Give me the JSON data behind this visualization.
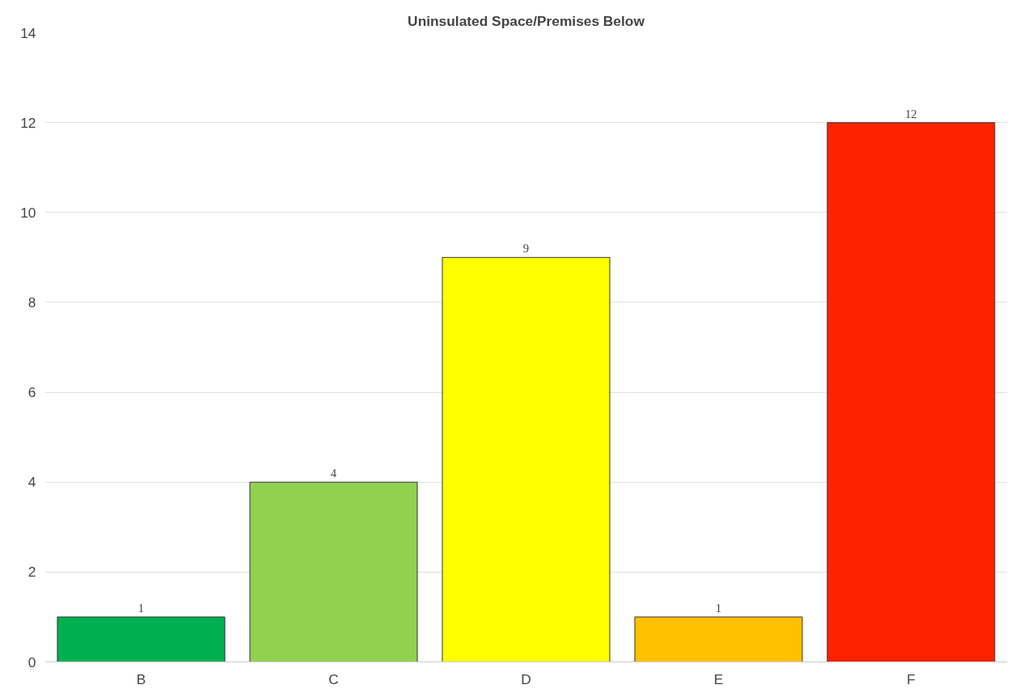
{
  "chart_data": {
    "type": "bar",
    "title": "Uninsulated Space/Premises Below",
    "categories": [
      "B",
      "C",
      "D",
      "E",
      "F"
    ],
    "values": [
      1,
      4,
      9,
      1,
      12
    ],
    "colors": [
      "#00b050",
      "#92d050",
      "#ffff00",
      "#ffc000",
      "#ff2200"
    ],
    "ylim": [
      0,
      14
    ],
    "yticks": [
      0,
      2,
      4,
      6,
      8,
      10,
      12,
      14
    ],
    "grid": "y",
    "data_labels": true
  }
}
